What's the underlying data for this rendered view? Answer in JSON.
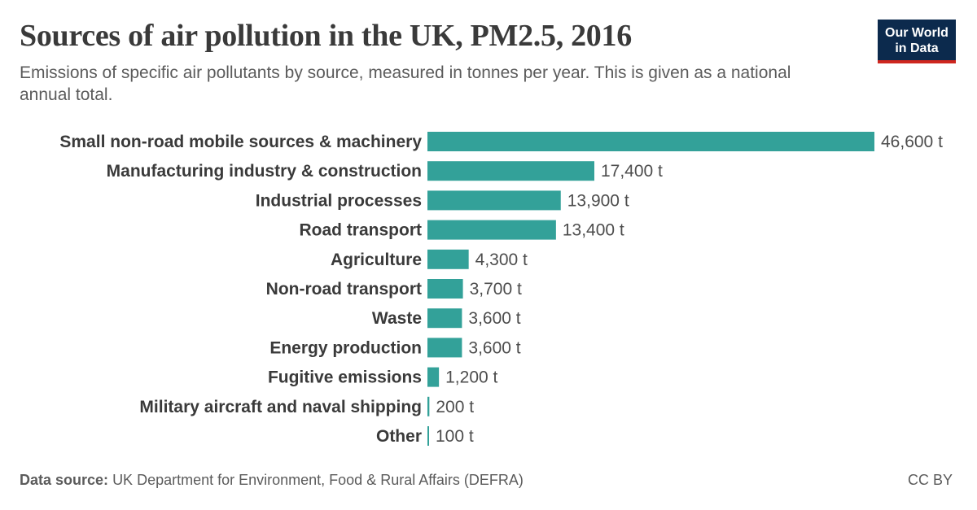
{
  "header": {
    "title": "Sources of air pollution in the UK, PM2.5, 2016",
    "subtitle": "Emissions of specific air pollutants by source, measured in tonnes per year. This is given as a national annual total."
  },
  "logo": {
    "line1": "Our World",
    "line2": "in Data"
  },
  "footer": {
    "source_label": "Data source:",
    "source_text": "UK Department for Environment, Food & Rural Affairs (DEFRA)",
    "license": "CC BY"
  },
  "colors": {
    "bar": "#33a199",
    "label": "#3a3a3a",
    "value": "#4d4d4d",
    "logo_bg": "#0c2a4d",
    "logo_accent": "#ce261e"
  },
  "chart_data": {
    "type": "bar",
    "orientation": "horizontal",
    "categories": [
      "Small non-road mobile sources & machinery",
      "Manufacturing industry & construction",
      "Industrial processes",
      "Road transport",
      "Agriculture",
      "Non-road transport",
      "Waste",
      "Energy production",
      "Fugitive emissions",
      "Military aircraft and naval shipping",
      "Other"
    ],
    "values": [
      46600,
      17400,
      13900,
      13400,
      4300,
      3700,
      3600,
      3600,
      1200,
      200,
      100
    ],
    "value_labels": [
      "46,600 t",
      "17,400 t",
      "13,900 t",
      "13,400 t",
      "4,300 t",
      "3,700 t",
      "3,600 t",
      "3,600 t",
      "1,200 t",
      "200 t",
      "100 t"
    ],
    "unit": "t",
    "xlim": [
      0,
      46600
    ]
  }
}
